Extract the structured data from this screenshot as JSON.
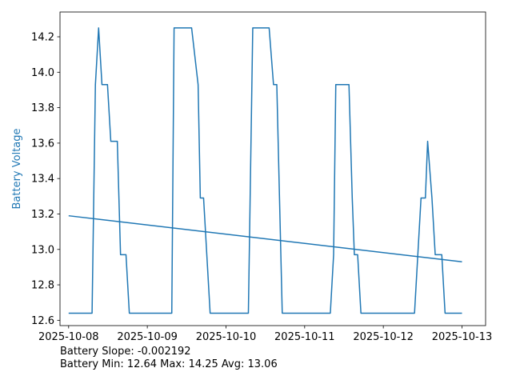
{
  "chart_data": {
    "type": "line",
    "title": "",
    "xlabel": "",
    "ylabel": "Battery Voltage",
    "ylabel_color": "#1f77b4",
    "line_color": "#1f77b4",
    "grid": false,
    "xlim": [
      "2025-10-07 21:22",
      "2025-10-13 07:12"
    ],
    "ylim": [
      12.57,
      14.34
    ],
    "x_ticks": [
      "2025-10-08",
      "2025-10-09",
      "2025-10-10",
      "2025-10-11",
      "2025-10-12",
      "2025-10-13"
    ],
    "y_ticks": [
      "12.6",
      "12.8",
      "13.0",
      "13.2",
      "13.4",
      "13.6",
      "13.8",
      "14.0",
      "14.2"
    ],
    "series": [
      {
        "name": "",
        "x": [
          "2025-10-08 00:00",
          "2025-10-08 07:09",
          "2025-10-08 08:10",
          "2025-10-08 09:09",
          "2025-10-08 10:10",
          "2025-10-08 11:51",
          "2025-10-08 12:52",
          "2025-10-08 14:51",
          "2025-10-08 15:50",
          "2025-10-08 17:30",
          "2025-10-08 18:31",
          "2025-10-09 07:28",
          "2025-10-09 08:10",
          "2025-10-09 13:31",
          "2025-10-09 15:30",
          "2025-10-09 16:10",
          "2025-10-09 17:10",
          "2025-10-09 19:10",
          "2025-10-10 06:50",
          "2025-10-10 08:10",
          "2025-10-10 13:10",
          "2025-10-10 14:30",
          "2025-10-10 15:30",
          "2025-10-10 17:10",
          "2025-10-10 19:10",
          "2025-10-11 07:50",
          "2025-10-11 08:50",
          "2025-10-11 09:30",
          "2025-10-11 13:31",
          "2025-10-11 14:31",
          "2025-10-11 15:10",
          "2025-10-11 16:10",
          "2025-10-11 17:10",
          "2025-10-12 09:31",
          "2025-10-12 11:30",
          "2025-10-12 12:50",
          "2025-10-12 13:31",
          "2025-10-12 14:50",
          "2025-10-12 15:50",
          "2025-10-12 17:50",
          "2025-10-12 18:50",
          "2025-10-13 00:00"
        ],
        "y": [
          12.64,
          12.64,
          13.93,
          14.25,
          13.93,
          13.93,
          13.61,
          13.61,
          12.97,
          12.97,
          12.64,
          12.64,
          14.25,
          14.25,
          13.93,
          13.29,
          13.29,
          12.64,
          12.64,
          14.25,
          14.25,
          13.93,
          13.93,
          12.64,
          12.64,
          12.64,
          12.97,
          13.93,
          13.93,
          13.29,
          12.97,
          12.97,
          12.64,
          12.64,
          13.29,
          13.29,
          13.61,
          13.29,
          12.97,
          12.97,
          12.64,
          12.64
        ]
      }
    ],
    "trend_line": {
      "x": [
        "2025-10-08 00:00",
        "2025-10-13 00:00"
      ],
      "y": [
        13.19,
        12.93
      ]
    }
  },
  "footer": {
    "line1": "Battery Slope: -0.002192",
    "line2": "Battery Min: 12.64 Max: 14.25 Avg: 13.06"
  }
}
